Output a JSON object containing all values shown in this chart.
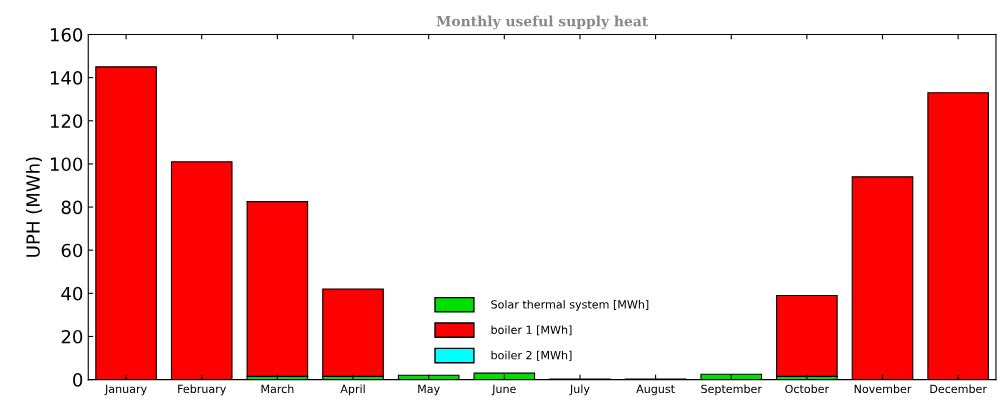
{
  "chart_data": {
    "type": "bar",
    "title": "Monthly useful supply heat",
    "ylabel": "UPH (MWh)",
    "categories": [
      "January",
      "February",
      "March",
      "April",
      "May",
      "June",
      "July",
      "August",
      "September",
      "October",
      "November",
      "December"
    ],
    "stacked": true,
    "ylim": [
      0,
      160
    ],
    "yticks": [
      0,
      20,
      40,
      60,
      80,
      100,
      120,
      140,
      160
    ],
    "grid": false,
    "legend": "bottom",
    "series": [
      {
        "name": "Solar thermal system [MWh]",
        "color": "#00e000",
        "values": [
          null,
          null,
          1.5,
          1.5,
          2,
          3,
          0.3,
          0.3,
          2.5,
          1.5,
          null,
          null
        ]
      },
      {
        "name": "boiler 1 [MWh]",
        "color": "#ff0000",
        "values": [
          145,
          101,
          81,
          40.5,
          null,
          null,
          null,
          null,
          null,
          37.5,
          94,
          133
        ]
      },
      {
        "name": "boiler 2 [MWh]",
        "color": "#00ffff",
        "values": [
          null,
          null,
          null,
          null,
          null,
          null,
          null,
          null,
          null,
          null,
          null,
          null
        ]
      }
    ]
  }
}
